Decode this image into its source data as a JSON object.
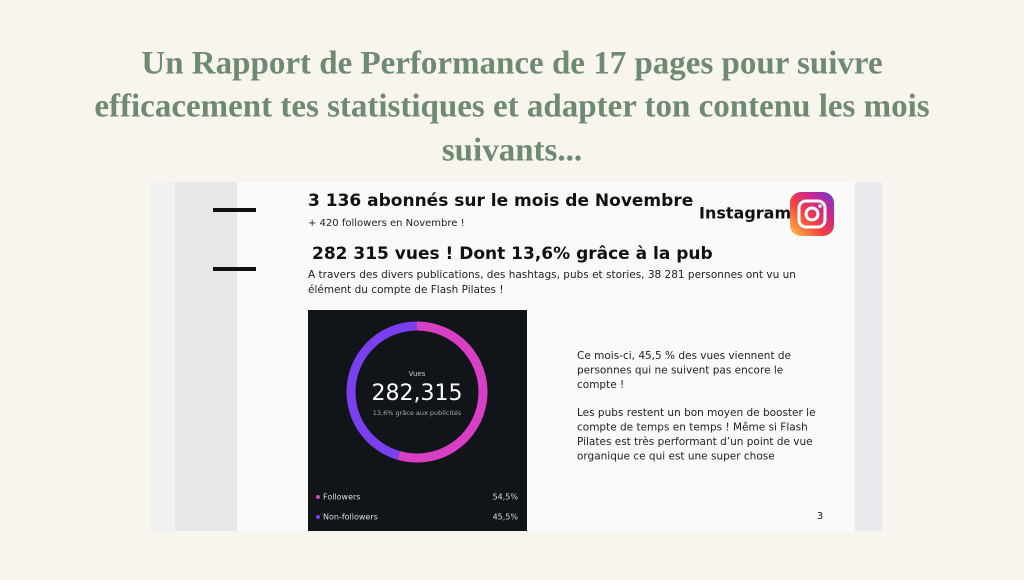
{
  "header": {
    "title_lines": [
      "Un Rapport de Performance de 17 pages pour suivre",
      "efficacement tes statistiques et adapter ton contenu les mois",
      "suivants..."
    ]
  },
  "page": {
    "headline1": "3 136 abonnés sur le mois de Novembre",
    "subline1": "+ 420 followers en Novembre !",
    "brand": "Instagram",
    "headline2": "282 315 vues ! Dont 13,6% grâce à la pub",
    "paragraph_lines": [
      "A travers des divers publications, des hashtags, pubs et stories, 38 281 personnes ont vu un",
      "élément du compte de Flash Pilates !"
    ],
    "side_text1": [
      "Ce mois-ci, 45,5 % des vues viennent de",
      "personnes qui ne suivent pas encore le",
      "compte !"
    ],
    "side_text2": [
      "Les pubs restent un bon moyen de booster le",
      "compte de temps en temps ! Même si Flash",
      "Pilates est très performant d’un point de vue",
      "organique ce qui est une super chose"
    ],
    "page_number": "3",
    "donut": {
      "center_label": "Vues",
      "total": "282,315",
      "note": "13,6% grâce aux publicités",
      "segments": [
        {
          "name": "Followers",
          "value": 54.5,
          "label": "54,5%",
          "color": "#d93fc4"
        },
        {
          "name": "Non-followers",
          "value": 45.5,
          "label": "45,5%",
          "color": "#7a40f0"
        }
      ]
    }
  }
}
